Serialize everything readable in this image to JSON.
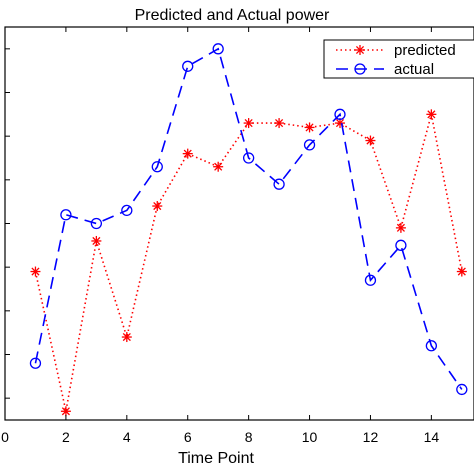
{
  "chart_data": {
    "type": "line",
    "title": "Predicted and Actual power",
    "xlabel": "Time Point",
    "ylabel": "",
    "xlim": [
      0,
      15.4
    ],
    "ylim": [
      0.1,
      1.0
    ],
    "grid": false,
    "legend_position": "top-right",
    "x_ticks": [
      0,
      2,
      4,
      6,
      8,
      10,
      12,
      14
    ],
    "x_tick_labels": [
      "0",
      "2",
      "4",
      "6",
      "8",
      "10",
      "12",
      "14"
    ],
    "y_ticks": [
      0.15,
      0.25,
      0.35,
      0.45,
      0.55,
      0.65,
      0.75,
      0.85,
      0.95
    ],
    "x": [
      1,
      2,
      3,
      4,
      5,
      6,
      7,
      8,
      9,
      10,
      11,
      12,
      13,
      14,
      15
    ],
    "series": [
      {
        "name": "predicted",
        "legend_label": "predicted",
        "color": "#ff0000",
        "line_style": "dotted",
        "marker": "asterisk",
        "values": [
          0.44,
          0.12,
          0.51,
          0.29,
          0.59,
          0.71,
          0.68,
          0.78,
          0.78,
          0.77,
          0.78,
          0.74,
          0.54,
          0.8,
          0.44
        ]
      },
      {
        "name": "actual",
        "legend_label": "actual",
        "color": "#0000ff",
        "line_style": "dashed",
        "marker": "circle",
        "values": [
          0.23,
          0.57,
          0.55,
          0.58,
          0.68,
          0.91,
          0.95,
          0.7,
          0.64,
          0.73,
          0.8,
          0.42,
          0.5,
          0.27,
          0.17
        ]
      }
    ]
  }
}
